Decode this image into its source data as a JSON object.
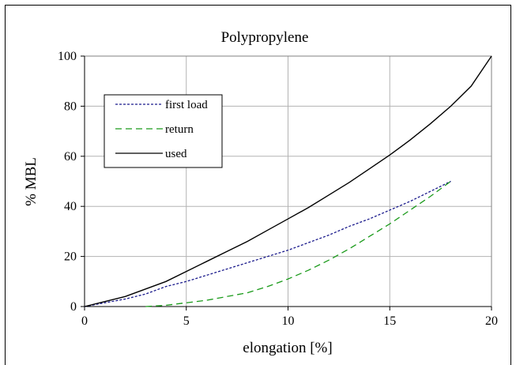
{
  "chart_data": {
    "type": "line",
    "title": "Polypropylene",
    "xlabel": "elongation [%]",
    "ylabel": "% MBL",
    "xlim": [
      0,
      20
    ],
    "ylim": [
      0,
      100
    ],
    "xticks": [
      0,
      5,
      10,
      15,
      20
    ],
    "yticks": [
      0,
      20,
      40,
      60,
      80,
      100
    ],
    "grid": true,
    "legend_position": "upper-left",
    "series": [
      {
        "name": "first load",
        "color": "#1a1a8c",
        "style": "dotted",
        "points": [
          [
            0,
            0
          ],
          [
            1,
            1.5
          ],
          [
            2,
            3
          ],
          [
            3,
            5
          ],
          [
            4,
            8
          ],
          [
            5,
            10
          ],
          [
            6,
            12.5
          ],
          [
            7,
            15
          ],
          [
            8,
            17.5
          ],
          [
            9,
            20
          ],
          [
            10,
            22.5
          ],
          [
            11,
            25.5
          ],
          [
            12,
            28.5
          ],
          [
            13,
            32
          ],
          [
            14,
            35
          ],
          [
            15,
            38.5
          ],
          [
            16,
            42
          ],
          [
            17,
            46
          ],
          [
            18,
            50
          ]
        ]
      },
      {
        "name": "return",
        "color": "#1a9a1a",
        "style": "dashed",
        "points": [
          [
            3,
            0
          ],
          [
            4,
            0.5
          ],
          [
            5,
            1.5
          ],
          [
            6,
            2.5
          ],
          [
            7,
            4
          ],
          [
            8,
            5.5
          ],
          [
            9,
            8
          ],
          [
            10,
            11
          ],
          [
            11,
            14.5
          ],
          [
            12,
            18.5
          ],
          [
            13,
            23
          ],
          [
            14,
            28
          ],
          [
            15,
            33
          ],
          [
            16,
            38.5
          ],
          [
            17,
            44
          ],
          [
            18,
            50
          ]
        ]
      },
      {
        "name": "used",
        "color": "#000000",
        "style": "solid",
        "points": [
          [
            0,
            0
          ],
          [
            1,
            2
          ],
          [
            2,
            4
          ],
          [
            3,
            7
          ],
          [
            4,
            10
          ],
          [
            5,
            14
          ],
          [
            6,
            18
          ],
          [
            7,
            22
          ],
          [
            8,
            26
          ],
          [
            9,
            30.5
          ],
          [
            10,
            35
          ],
          [
            11,
            39.5
          ],
          [
            12,
            44.5
          ],
          [
            13,
            49.5
          ],
          [
            14,
            55
          ],
          [
            15,
            60.5
          ],
          [
            16,
            66.5
          ],
          [
            17,
            73
          ],
          [
            18,
            80
          ],
          [
            19,
            88
          ],
          [
            20,
            100
          ]
        ]
      }
    ]
  }
}
